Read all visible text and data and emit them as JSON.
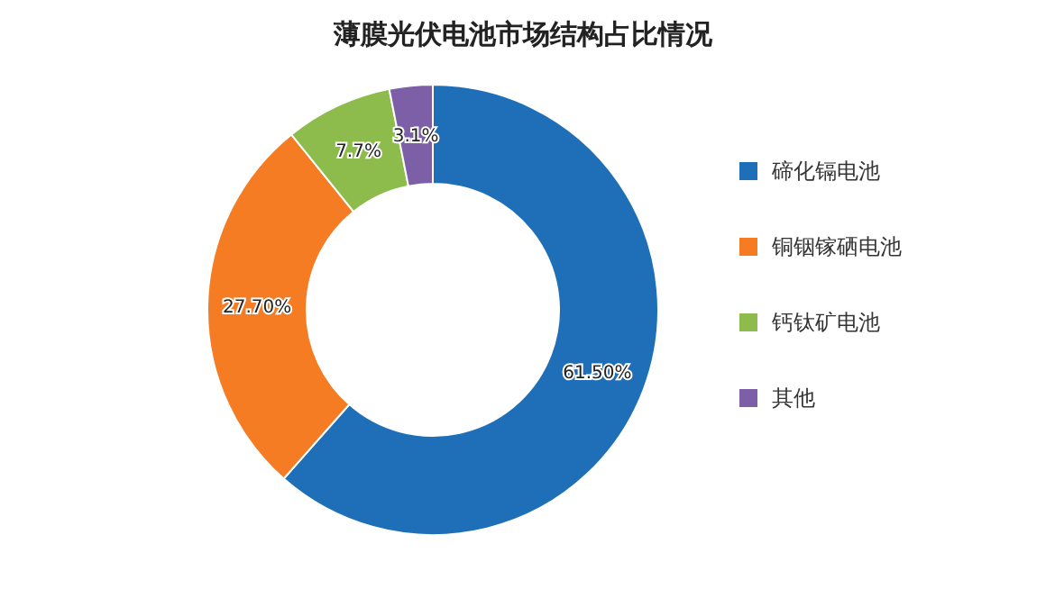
{
  "chart_data": {
    "type": "donut",
    "title": "薄膜光伏电池市场结构占比情况",
    "categories": [
      "碲化镉电池",
      "铜铟镓硒电池",
      "钙钛矿电池",
      "其他"
    ],
    "values": [
      61.5,
      27.7,
      7.7,
      3.1
    ],
    "value_labels": [
      "61.50%",
      "27.70%",
      "7.7%",
      "3.1%"
    ],
    "colors": [
      "#1f6fb8",
      "#f57c22",
      "#8dbb4c",
      "#7d5fa8"
    ],
    "legend": "right"
  }
}
